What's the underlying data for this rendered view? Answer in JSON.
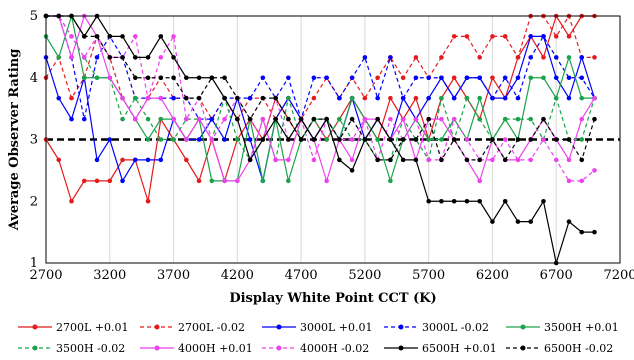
{
  "chart_data": {
    "type": "line",
    "xlabel": "Display White Point CCT (K)",
    "ylabel": "Average Observer Rating",
    "xlim": [
      2700,
      7200
    ],
    "ylim": [
      1,
      5
    ],
    "xticks": [
      2700,
      3200,
      3700,
      4200,
      4700,
      5200,
      5700,
      6200,
      6700,
      7200
    ],
    "yticks": [
      1,
      2,
      3,
      4,
      5
    ],
    "grid": "vertical",
    "legend_position": "bottom",
    "reference_line": {
      "y": 3,
      "color": "#000000",
      "dash": true
    },
    "x": [
      2700,
      2800,
      2900,
      3000,
      3100,
      3200,
      3300,
      3400,
      3500,
      3600,
      3700,
      3800,
      3900,
      4000,
      4100,
      4200,
      4300,
      4400,
      4500,
      4600,
      4700,
      4800,
      4900,
      5000,
      5100,
      5200,
      5300,
      5400,
      5500,
      5600,
      5700,
      5800,
      5900,
      6000,
      6100,
      6200,
      6300,
      6400,
      6500,
      6600,
      6700,
      6800,
      6900,
      7000
    ],
    "series": [
      {
        "name": "2700L  +0.01",
        "color": "#e41a1c",
        "dash": false,
        "values": [
          3.0,
          2.67,
          2.0,
          2.33,
          2.33,
          2.33,
          2.67,
          2.67,
          2.0,
          3.33,
          3.0,
          2.67,
          2.33,
          3.0,
          2.33,
          3.0,
          3.33,
          3.0,
          3.67,
          3.33,
          3.0,
          3.33,
          3.0,
          3.33,
          3.67,
          3.33,
          3.0,
          3.67,
          3.33,
          3.67,
          3.0,
          3.67,
          4.0,
          3.67,
          3.33,
          4.0,
          3.67,
          4.33,
          4.67,
          4.33,
          5.0,
          4.67,
          5.0,
          5.0
        ]
      },
      {
        "name": "2700L  -0.02",
        "color": "#e41a1c",
        "dash": true,
        "values": [
          4.0,
          4.33,
          3.67,
          4.0,
          4.67,
          4.33,
          3.67,
          3.33,
          3.67,
          4.0,
          3.67,
          3.67,
          3.67,
          3.33,
          3.67,
          3.33,
          3.67,
          3.67,
          3.33,
          3.67,
          3.33,
          3.67,
          4.0,
          3.67,
          4.0,
          3.67,
          4.0,
          4.33,
          4.0,
          4.33,
          4.0,
          4.33,
          4.67,
          4.67,
          4.33,
          4.67,
          4.67,
          4.33,
          5.0,
          5.0,
          4.67,
          5.0,
          4.33,
          4.33
        ]
      },
      {
        "name": "3000L  +0.01",
        "color": "#0000ff",
        "dash": false,
        "values": [
          4.33,
          3.67,
          3.33,
          4.0,
          2.67,
          3.0,
          2.33,
          2.67,
          2.67,
          2.67,
          3.33,
          3.0,
          3.0,
          3.33,
          3.0,
          3.67,
          3.0,
          2.33,
          3.33,
          3.67,
          3.33,
          3.0,
          3.33,
          3.0,
          3.67,
          3.0,
          3.33,
          3.0,
          3.67,
          3.33,
          3.67,
          4.0,
          3.67,
          4.0,
          4.0,
          3.67,
          3.67,
          4.0,
          4.67,
          4.67,
          4.0,
          3.67,
          4.33,
          3.67
        ]
      },
      {
        "name": "3000L  -0.02",
        "color": "#0000ff",
        "dash": true,
        "values": [
          5.0,
          5.0,
          4.33,
          3.33,
          4.33,
          4.67,
          4.33,
          3.67,
          3.67,
          3.67,
          3.67,
          3.67,
          3.33,
          3.33,
          3.67,
          3.67,
          3.67,
          4.0,
          3.67,
          4.0,
          3.33,
          4.0,
          4.0,
          3.67,
          4.0,
          4.33,
          3.67,
          4.33,
          3.67,
          4.0,
          4.0,
          4.0,
          3.67,
          4.0,
          4.0,
          3.67,
          4.0,
          3.67,
          4.33,
          4.67,
          4.33,
          4.0,
          4.0,
          3.67
        ]
      },
      {
        "name": "3500H  +0.01",
        "color": "#1aa34a",
        "dash": false,
        "values": [
          4.67,
          4.33,
          5.0,
          4.0,
          4.0,
          4.0,
          3.67,
          3.33,
          3.0,
          3.33,
          3.33,
          3.0,
          3.33,
          2.33,
          2.33,
          2.33,
          3.33,
          2.33,
          3.33,
          2.33,
          3.0,
          3.33,
          3.33,
          3.0,
          3.67,
          3.33,
          3.0,
          2.33,
          3.0,
          3.33,
          3.0,
          3.0,
          3.33,
          3.0,
          3.67,
          3.0,
          3.33,
          3.0,
          4.0,
          4.0,
          3.67,
          4.33,
          3.67,
          3.67
        ]
      },
      {
        "name": "3500H  -0.02",
        "color": "#1aa34a",
        "dash": true,
        "values": [
          5.0,
          5.0,
          4.67,
          4.33,
          4.0,
          4.0,
          3.33,
          3.67,
          3.33,
          3.0,
          3.0,
          3.33,
          3.33,
          3.0,
          3.67,
          3.0,
          2.67,
          3.33,
          2.67,
          3.67,
          3.0,
          3.33,
          3.0,
          3.33,
          3.0,
          3.0,
          2.67,
          2.67,
          3.33,
          3.0,
          2.67,
          3.67,
          3.0,
          3.67,
          3.33,
          3.0,
          3.33,
          3.33,
          3.33,
          3.0,
          3.67,
          3.0,
          3.0,
          3.67
        ]
      },
      {
        "name": "4000H  +0.01",
        "color": "#ee42ee",
        "dash": false,
        "values": [
          5.0,
          5.0,
          4.33,
          5.0,
          4.67,
          4.0,
          3.67,
          3.33,
          3.67,
          3.67,
          3.33,
          3.0,
          3.33,
          3.0,
          2.33,
          2.33,
          2.67,
          3.33,
          2.67,
          2.67,
          3.33,
          3.0,
          2.33,
          3.0,
          2.67,
          3.33,
          3.33,
          3.0,
          3.33,
          2.67,
          3.33,
          3.33,
          3.0,
          2.67,
          2.33,
          3.0,
          2.67,
          2.67,
          3.0,
          3.33,
          3.0,
          2.67,
          3.33,
          3.67
        ]
      },
      {
        "name": "4000H  -0.02",
        "color": "#ee42ee",
        "dash": true,
        "values": [
          5.0,
          5.0,
          4.67,
          4.33,
          4.67,
          4.33,
          4.33,
          4.67,
          3.67,
          4.33,
          4.67,
          3.33,
          3.67,
          3.0,
          3.33,
          3.67,
          3.33,
          3.0,
          3.67,
          3.0,
          3.33,
          2.67,
          3.33,
          3.0,
          3.0,
          3.33,
          2.67,
          3.33,
          3.0,
          3.33,
          2.67,
          2.67,
          3.33,
          3.0,
          2.67,
          2.67,
          3.0,
          2.67,
          2.67,
          3.0,
          2.67,
          2.33,
          2.33,
          2.5
        ]
      },
      {
        "name": "6500H  +0.01",
        "color": "#000000",
        "dash": false,
        "values": [
          5.0,
          5.0,
          5.0,
          4.67,
          5.0,
          4.67,
          4.67,
          4.33,
          4.33,
          4.67,
          4.33,
          4.0,
          4.0,
          4.0,
          3.67,
          3.33,
          2.67,
          3.0,
          3.33,
          3.0,
          3.33,
          3.0,
          3.33,
          2.67,
          2.5,
          3.0,
          3.33,
          3.0,
          2.67,
          2.67,
          2.0,
          2.0,
          2.0,
          2.0,
          2.0,
          1.67,
          2.0,
          1.67,
          1.67,
          2.0,
          1.0,
          1.67,
          1.5,
          1.5
        ]
      },
      {
        "name": "6500H  -0.02",
        "color": "#000000",
        "dash": true,
        "values": [
          5.0,
          5.0,
          5.0,
          4.67,
          4.67,
          4.33,
          4.33,
          4.0,
          4.0,
          4.0,
          4.0,
          3.67,
          3.67,
          4.0,
          4.0,
          3.67,
          3.33,
          3.67,
          3.67,
          3.33,
          3.0,
          3.33,
          3.33,
          3.0,
          3.33,
          3.0,
          2.67,
          2.67,
          3.0,
          3.0,
          3.33,
          2.67,
          3.0,
          2.67,
          2.67,
          3.0,
          2.67,
          3.0,
          3.0,
          3.33,
          3.0,
          3.0,
          2.67,
          3.33
        ]
      }
    ]
  }
}
